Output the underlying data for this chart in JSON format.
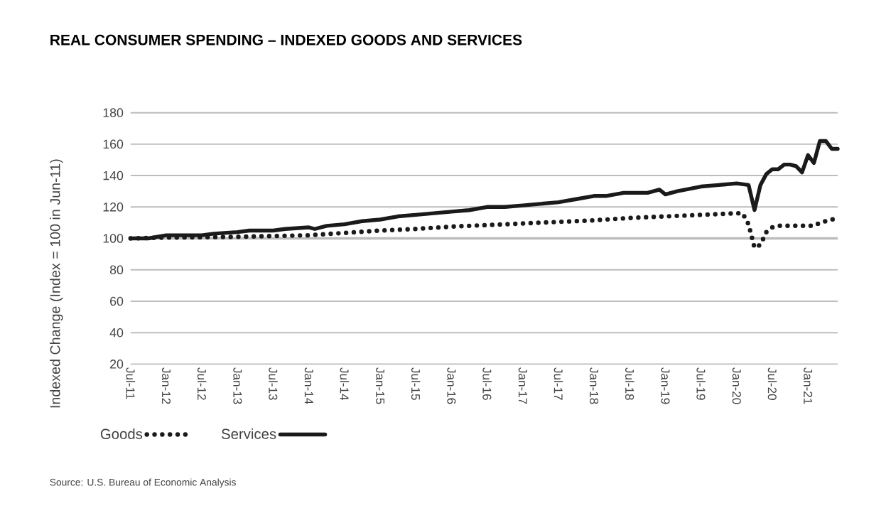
{
  "chart_data": {
    "type": "line",
    "title": "REAL CONSUMER SPENDING – INDEXED GOODS AND SERVICES",
    "ylabel": "Indexed Change (Index = 100 in Jun-11)",
    "annotations": [
      "Source: U.S. Bureau of Economic Analysis"
    ],
    "xlim": [
      "2011-07",
      "2021-06"
    ],
    "xticks": [
      {
        "value": "2011-07",
        "label": "Jul-11"
      },
      {
        "value": "2012-01",
        "label": "Jan-12"
      },
      {
        "value": "2012-07",
        "label": "Jul-12"
      },
      {
        "value": "2013-01",
        "label": "Jan-13"
      },
      {
        "value": "2013-07",
        "label": "Jul-13"
      },
      {
        "value": "2014-01",
        "label": "Jan-14"
      },
      {
        "value": "2014-07",
        "label": "Jul-14"
      },
      {
        "value": "2015-01",
        "label": "Jan-15"
      },
      {
        "value": "2015-07",
        "label": "Jul-15"
      },
      {
        "value": "2016-01",
        "label": "Jan-16"
      },
      {
        "value": "2016-07",
        "label": "Jul-16"
      },
      {
        "value": "2017-01",
        "label": "Jan-17"
      },
      {
        "value": "2017-07",
        "label": "Jul-17"
      },
      {
        "value": "2018-01",
        "label": "Jan-18"
      },
      {
        "value": "2018-07",
        "label": "Jul-18"
      },
      {
        "value": "2019-01",
        "label": "Jan-19"
      },
      {
        "value": "2019-07",
        "label": "Jul-19"
      },
      {
        "value": "2020-01",
        "label": "Jan-20"
      },
      {
        "value": "2020-07",
        "label": "Jul-20"
      },
      {
        "value": "2021-01",
        "label": "Jan-21"
      }
    ],
    "ylim": [
      20,
      180
    ],
    "yticks": [
      20,
      40,
      60,
      80,
      100,
      120,
      140,
      160,
      180
    ],
    "grid": "y",
    "legend": "bottom left",
    "ref_lines": [
      {
        "axis": "y",
        "value": 100,
        "color": "#bdbdbd"
      }
    ],
    "series": [
      {
        "name": "Goods",
        "color": "#1a1a1a",
        "line_style": "dotted",
        "x": [
          "2011-07",
          "2012-01",
          "2013-01",
          "2014-01",
          "2014-07",
          "2015-01",
          "2015-07",
          "2016-01",
          "2016-07",
          "2017-01",
          "2017-07",
          "2018-01",
          "2018-07",
          "2019-01",
          "2019-07",
          "2020-01",
          "2020-02",
          "2020-03",
          "2020-04",
          "2020-05",
          "2020-06",
          "2020-07",
          "2020-08",
          "2020-12",
          "2021-02",
          "2021-03",
          "2021-05",
          "2021-06"
        ],
        "values": [
          100,
          100.5,
          101,
          102,
          103.5,
          105,
          106,
          107.5,
          108.5,
          109.5,
          110.5,
          111.5,
          113,
          114,
          115,
          116,
          116,
          109,
          94,
          96,
          104,
          107,
          108,
          108,
          108,
          110,
          112,
          113
        ]
      },
      {
        "name": "Services",
        "color": "#1a1a1a",
        "line_style": "solid",
        "x": [
          "2011-07",
          "2011-10",
          "2012-01",
          "2012-07",
          "2012-09",
          "2013-01",
          "2013-03",
          "2013-07",
          "2013-09",
          "2014-01",
          "2014-02",
          "2014-04",
          "2014-07",
          "2014-10",
          "2015-01",
          "2015-04",
          "2015-07",
          "2015-10",
          "2016-01",
          "2016-04",
          "2016-07",
          "2016-10",
          "2017-01",
          "2017-04",
          "2017-07",
          "2017-10",
          "2018-01",
          "2018-03",
          "2018-06",
          "2018-10",
          "2018-12",
          "2019-01",
          "2019-03",
          "2019-07",
          "2019-10",
          "2020-01",
          "2020-03",
          "2020-04",
          "2020-05",
          "2020-06",
          "2020-07",
          "2020-08",
          "2020-09",
          "2020-10",
          "2020-11",
          "2020-12",
          "2021-01",
          "2021-02",
          "2021-03",
          "2021-04",
          "2021-05",
          "2021-06"
        ],
        "values": [
          100,
          100,
          102,
          102,
          103,
          104,
          105,
          105,
          106,
          107,
          106,
          108,
          109,
          111,
          112,
          114,
          115,
          116,
          117,
          118,
          120,
          120,
          121,
          122,
          123,
          125,
          127,
          127,
          129,
          129,
          131,
          128,
          130,
          133,
          134,
          135,
          134,
          118,
          134,
          141,
          144,
          144,
          147,
          147,
          146,
          142,
          153,
          148,
          162,
          162,
          157,
          157
        ]
      }
    ]
  }
}
